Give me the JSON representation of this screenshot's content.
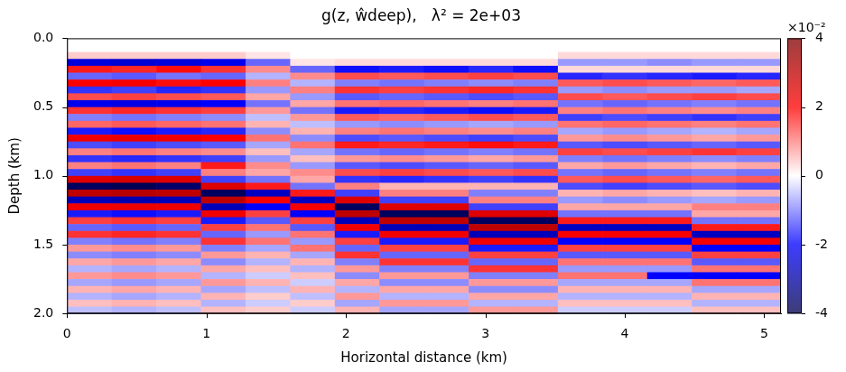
{
  "chart_data": {
    "type": "heatmap",
    "title": "g(z, ŵdeep),   λ² = 2e+03",
    "x_label": "Horizontal distance (km)",
    "y_label": "Depth (km)",
    "x": [
      0.16,
      0.48,
      0.8,
      1.12,
      1.44,
      1.76,
      2.08,
      2.4,
      2.72,
      3.04,
      3.36,
      3.68,
      4.0,
      4.32,
      4.64,
      4.96
    ],
    "y": [
      0.025,
      0.075,
      0.125,
      0.175,
      0.225,
      0.275,
      0.325,
      0.375,
      0.425,
      0.475,
      0.525,
      0.575,
      0.625,
      0.675,
      0.725,
      0.775,
      0.825,
      0.875,
      0.925,
      0.975,
      1.025,
      1.075,
      1.125,
      1.175,
      1.225,
      1.275,
      1.325,
      1.375,
      1.425,
      1.475,
      1.525,
      1.575,
      1.625,
      1.675,
      1.725,
      1.775,
      1.825,
      1.875,
      1.925,
      1.975
    ],
    "cells": [
      [
        0,
        0,
        0,
        0,
        0,
        0,
        0,
        0,
        0,
        0,
        0,
        0,
        0,
        0,
        0,
        0
      ],
      [
        0,
        0,
        0,
        0,
        0,
        0,
        0,
        0,
        0,
        0,
        0,
        0,
        0,
        0,
        0,
        0
      ],
      [
        0.4,
        0.4,
        0.4,
        0.4,
        0.2,
        0,
        0,
        0,
        0,
        0,
        0,
        0.3,
        0.3,
        0.3,
        0.3,
        0.3
      ],
      [
        -2.4,
        -2.5,
        -2.4,
        -2.2,
        -1.2,
        0.2,
        0.3,
        0.3,
        0.3,
        0.3,
        0.3,
        -0.8,
        -0.8,
        -0.9,
        -0.8,
        -0.8
      ],
      [
        1.8,
        1.7,
        1.9,
        1.6,
        0.9,
        -1.2,
        -1.9,
        -1.8,
        -1.9,
        -1.7,
        -1.9,
        0.3,
        0.3,
        0.3,
        0.3,
        0.3
      ],
      [
        -1.2,
        -1.3,
        -1.1,
        -1.2,
        -0.6,
        0.9,
        1.4,
        1.3,
        1.4,
        1.5,
        1.4,
        -1.7,
        -1.6,
        -1.7,
        -1.8,
        -1.7
      ],
      [
        2.0,
        2.1,
        1.9,
        2.0,
        1.0,
        -0.6,
        -1.0,
        -1.1,
        -1.0,
        -0.9,
        -1.0,
        1.3,
        1.4,
        1.3,
        1.2,
        1.3
      ],
      [
        -1.6,
        -1.5,
        -1.7,
        -1.6,
        -0.8,
        1.0,
        1.6,
        1.5,
        1.6,
        1.7,
        1.6,
        -0.8,
        -0.9,
        -0.8,
        -0.8,
        -0.7
      ],
      [
        1.4,
        1.5,
        1.4,
        1.3,
        0.7,
        -0.8,
        -1.3,
        -1.2,
        -1.3,
        -1.4,
        -1.3,
        1.4,
        1.3,
        1.4,
        1.5,
        1.4
      ],
      [
        -2.2,
        -2.3,
        -2.2,
        -2.0,
        -1.1,
        0.7,
        1.1,
        1.2,
        1.1,
        1.0,
        1.1,
        -1.1,
        -1.2,
        -1.1,
        -1.0,
        -1.1
      ],
      [
        1.6,
        1.7,
        1.6,
        1.5,
        0.8,
        -1.1,
        -1.8,
        -1.7,
        -1.8,
        -1.9,
        -1.8,
        1.0,
        1.1,
        1.0,
        0.9,
        1.0
      ],
      [
        -1.0,
        -1.1,
        -1.0,
        -0.9,
        -0.5,
        0.8,
        1.3,
        1.2,
        1.3,
        1.4,
        1.3,
        -1.5,
        -1.4,
        -1.5,
        -1.6,
        -1.5
      ],
      [
        1.2,
        1.3,
        1.2,
        1.1,
        0.6,
        -0.5,
        -0.8,
        -0.9,
        -0.8,
        -0.7,
        -0.8,
        1.1,
        1.2,
        1.1,
        1.0,
        1.1
      ],
      [
        -1.8,
        -1.9,
        -1.8,
        -1.7,
        -0.9,
        0.6,
        1.0,
        1.1,
        1.0,
        0.9,
        1.0,
        -0.7,
        -0.8,
        -0.7,
        -0.6,
        -0.7
      ],
      [
        2.2,
        2.3,
        2.2,
        2.0,
        1.1,
        -0.9,
        -1.4,
        -1.3,
        -1.4,
        -1.5,
        -1.4,
        0.8,
        0.9,
        0.8,
        0.7,
        0.8
      ],
      [
        -1.4,
        -1.5,
        -1.4,
        -1.3,
        -0.7,
        1.1,
        1.8,
        1.7,
        1.8,
        1.9,
        1.8,
        -1.3,
        -1.4,
        -1.3,
        -1.2,
        -1.3
      ],
      [
        1.0,
        1.1,
        1.0,
        0.9,
        0.5,
        -0.7,
        -1.1,
        -1.2,
        -1.1,
        -1.0,
        -1.1,
        1.5,
        1.4,
        1.5,
        1.6,
        1.5
      ],
      [
        -1.6,
        -1.7,
        -1.6,
        -1.5,
        -0.8,
        0.5,
        0.8,
        0.9,
        0.8,
        0.7,
        0.8,
        -1.0,
        -1.1,
        -1.0,
        -0.9,
        -1.0
      ],
      [
        1.0,
        1.1,
        1.0,
        1.8,
        0.9,
        -0.8,
        -1.3,
        -1.4,
        -1.3,
        -1.2,
        -1.3,
        0.7,
        0.8,
        0.7,
        0.6,
        0.7
      ],
      [
        -1.5,
        -1.6,
        -1.5,
        1.0,
        0.7,
        0.9,
        1.4,
        1.5,
        1.4,
        1.3,
        1.4,
        -1.1,
        -1.2,
        -1.1,
        -1.0,
        -1.1
      ],
      [
        2.5,
        2.6,
        2.5,
        -1.5,
        -1.1,
        0.7,
        -1.6,
        -1.7,
        -1.6,
        -1.5,
        -1.6,
        1.3,
        1.4,
        1.3,
        1.2,
        1.3
      ],
      [
        -3.8,
        -3.9,
        -3.7,
        2.5,
        1.8,
        -1.1,
        1.0,
        0.6,
        0.6,
        0.6,
        0.6,
        -1.4,
        -1.5,
        -1.4,
        -1.3,
        -1.4
      ],
      [
        3.0,
        3.1,
        3.0,
        -3.8,
        -2.7,
        1.8,
        -1.5,
        1.0,
        1.0,
        -1.0,
        -1.0,
        0.6,
        0.7,
        0.6,
        0.5,
        0.6
      ],
      [
        -2.8,
        -2.9,
        -2.8,
        3.0,
        2.1,
        -2.7,
        2.5,
        -1.5,
        -1.5,
        1.0,
        1.0,
        -0.8,
        -0.9,
        -0.8,
        -0.7,
        -0.8
      ],
      [
        2.2,
        2.3,
        2.2,
        -2.8,
        -2.0,
        2.1,
        -3.8,
        2.5,
        2.5,
        -1.5,
        -1.5,
        0.7,
        0.7,
        0.7,
        1.0,
        1.0
      ],
      [
        -1.8,
        -1.9,
        -1.8,
        2.2,
        1.5,
        -2.0,
        3.0,
        -3.8,
        -3.8,
        2.5,
        2.5,
        -1.1,
        -1.1,
        -1.1,
        0.7,
        0.7
      ],
      [
        1.5,
        1.6,
        1.5,
        -1.8,
        -1.3,
        1.5,
        -2.8,
        3.0,
        3.0,
        -3.8,
        -3.8,
        1.8,
        1.8,
        1.8,
        -1.1,
        -1.1
      ],
      [
        -1.2,
        -1.3,
        -1.2,
        1.5,
        1.1,
        -1.3,
        2.2,
        -2.8,
        -2.8,
        3.0,
        3.0,
        -2.7,
        -2.7,
        -2.7,
        1.8,
        1.8
      ],
      [
        1.6,
        1.7,
        1.6,
        -1.2,
        -0.8,
        1.1,
        -1.8,
        2.2,
        2.2,
        -2.8,
        -2.8,
        2.1,
        2.1,
        2.1,
        -2.7,
        -2.7
      ],
      [
        -1.0,
        -1.1,
        -1.0,
        1.6,
        1.1,
        -0.8,
        1.5,
        -1.8,
        -1.8,
        2.2,
        2.2,
        -2.0,
        -2.0,
        -2.0,
        2.1,
        2.1
      ],
      [
        0.8,
        0.9,
        0.8,
        -1.0,
        -0.7,
        1.1,
        -1.2,
        1.5,
        1.5,
        -1.8,
        -1.8,
        1.5,
        1.5,
        1.5,
        -2.0,
        -2.0
      ],
      [
        -0.9,
        -1.0,
        -0.9,
        0.8,
        0.6,
        -0.7,
        1.6,
        -1.2,
        -1.2,
        1.5,
        1.5,
        -1.3,
        -1.3,
        -1.3,
        1.5,
        1.5
      ],
      [
        0.7,
        0.8,
        0.7,
        -0.9,
        -0.6,
        0.6,
        -1.0,
        1.6,
        1.6,
        -1.2,
        -1.2,
        1.1,
        1.1,
        1.1,
        -1.3,
        -1.3
      ],
      [
        -0.6,
        -0.7,
        -0.6,
        0.7,
        0.5,
        -0.6,
        0.8,
        -1.0,
        -1.0,
        1.6,
        1.6,
        -0.8,
        -0.8,
        -0.8,
        1.1,
        1.1
      ],
      [
        0.8,
        0.9,
        0.8,
        -0.6,
        -0.4,
        0.5,
        -0.9,
        0.8,
        0.8,
        -1.0,
        -1.0,
        1.1,
        1.1,
        -2.0,
        -2.0,
        -2.0
      ],
      [
        -0.7,
        -0.8,
        -0.7,
        0.8,
        0.6,
        -0.4,
        0.7,
        -0.9,
        -0.9,
        0.8,
        0.8,
        -0.7,
        -0.7,
        -0.7,
        1.1,
        1.1
      ],
      [
        0.6,
        0.7,
        0.6,
        -0.7,
        -0.5,
        0.6,
        -0.6,
        0.7,
        0.7,
        -0.9,
        -0.9,
        0.6,
        0.6,
        0.6,
        -0.7,
        -0.7
      ],
      [
        -0.6,
        -0.7,
        -0.6,
        0.6,
        0.4,
        -0.5,
        0.8,
        -0.6,
        -0.6,
        0.7,
        0.7,
        -0.6,
        -0.6,
        -0.6,
        0.6,
        0.6
      ],
      [
        0.5,
        0.6,
        0.5,
        -0.6,
        -0.4,
        0.4,
        -0.7,
        0.8,
        0.8,
        -0.6,
        -0.6,
        0.5,
        0.5,
        0.5,
        -0.6,
        -0.6
      ],
      [
        -0.5,
        -0.6,
        -0.5,
        0.5,
        0.4,
        -0.4,
        0.6,
        -0.7,
        -0.7,
        0.8,
        0.8,
        -0.4,
        -0.4,
        -0.4,
        0.5,
        0.5
      ]
    ],
    "xlim": [
      0,
      5.12
    ],
    "xticks": [
      0,
      1,
      2,
      3,
      4,
      5
    ],
    "ylim": [
      2,
      0
    ],
    "yticks": [
      {
        "value": 0,
        "label": "0.0"
      },
      0.5,
      {
        "value": 1,
        "label": "1.0"
      },
      1.5,
      {
        "value": 2,
        "label": "2.0"
      }
    ],
    "colorbar": {
      "range": [
        -4,
        4
      ],
      "ticks": [
        -4,
        -2,
        0,
        2,
        4
      ],
      "label": "×10⁻²"
    }
  }
}
